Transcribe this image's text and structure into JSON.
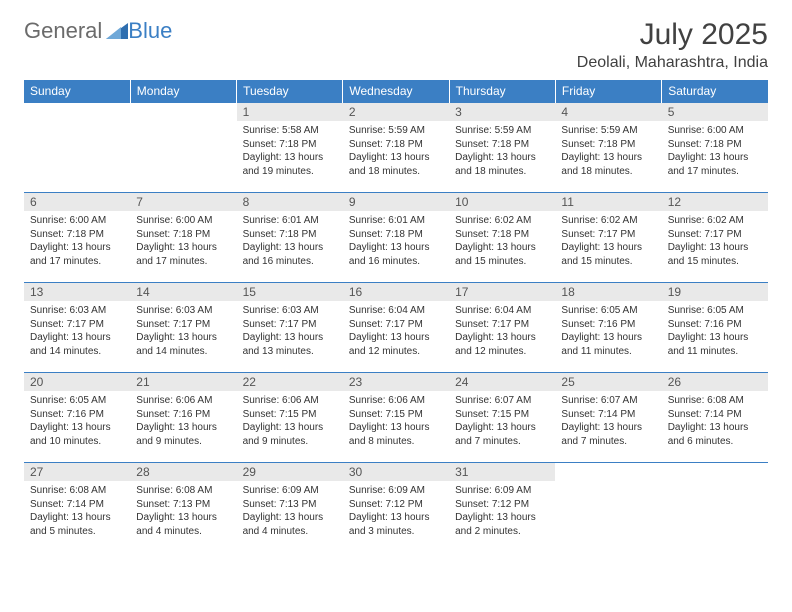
{
  "brand": {
    "part1": "General",
    "part2": "Blue"
  },
  "title": "July 2025",
  "location": "Deolali, Maharashtra, India",
  "colors": {
    "header_bg": "#3b7fc4",
    "header_text": "#ffffff",
    "daynum_bg": "#e9e9e9",
    "daynum_text": "#555555",
    "body_text": "#333333",
    "rule": "#3b7fc4"
  },
  "day_names": [
    "Sunday",
    "Monday",
    "Tuesday",
    "Wednesday",
    "Thursday",
    "Friday",
    "Saturday"
  ],
  "weeks": [
    [
      null,
      null,
      {
        "n": "1",
        "sr": "Sunrise: 5:58 AM",
        "ss": "Sunset: 7:18 PM",
        "dl": "Daylight: 13 hours and 19 minutes."
      },
      {
        "n": "2",
        "sr": "Sunrise: 5:59 AM",
        "ss": "Sunset: 7:18 PM",
        "dl": "Daylight: 13 hours and 18 minutes."
      },
      {
        "n": "3",
        "sr": "Sunrise: 5:59 AM",
        "ss": "Sunset: 7:18 PM",
        "dl": "Daylight: 13 hours and 18 minutes."
      },
      {
        "n": "4",
        "sr": "Sunrise: 5:59 AM",
        "ss": "Sunset: 7:18 PM",
        "dl": "Daylight: 13 hours and 18 minutes."
      },
      {
        "n": "5",
        "sr": "Sunrise: 6:00 AM",
        "ss": "Sunset: 7:18 PM",
        "dl": "Daylight: 13 hours and 17 minutes."
      }
    ],
    [
      {
        "n": "6",
        "sr": "Sunrise: 6:00 AM",
        "ss": "Sunset: 7:18 PM",
        "dl": "Daylight: 13 hours and 17 minutes."
      },
      {
        "n": "7",
        "sr": "Sunrise: 6:00 AM",
        "ss": "Sunset: 7:18 PM",
        "dl": "Daylight: 13 hours and 17 minutes."
      },
      {
        "n": "8",
        "sr": "Sunrise: 6:01 AM",
        "ss": "Sunset: 7:18 PM",
        "dl": "Daylight: 13 hours and 16 minutes."
      },
      {
        "n": "9",
        "sr": "Sunrise: 6:01 AM",
        "ss": "Sunset: 7:18 PM",
        "dl": "Daylight: 13 hours and 16 minutes."
      },
      {
        "n": "10",
        "sr": "Sunrise: 6:02 AM",
        "ss": "Sunset: 7:18 PM",
        "dl": "Daylight: 13 hours and 15 minutes."
      },
      {
        "n": "11",
        "sr": "Sunrise: 6:02 AM",
        "ss": "Sunset: 7:17 PM",
        "dl": "Daylight: 13 hours and 15 minutes."
      },
      {
        "n": "12",
        "sr": "Sunrise: 6:02 AM",
        "ss": "Sunset: 7:17 PM",
        "dl": "Daylight: 13 hours and 15 minutes."
      }
    ],
    [
      {
        "n": "13",
        "sr": "Sunrise: 6:03 AM",
        "ss": "Sunset: 7:17 PM",
        "dl": "Daylight: 13 hours and 14 minutes."
      },
      {
        "n": "14",
        "sr": "Sunrise: 6:03 AM",
        "ss": "Sunset: 7:17 PM",
        "dl": "Daylight: 13 hours and 14 minutes."
      },
      {
        "n": "15",
        "sr": "Sunrise: 6:03 AM",
        "ss": "Sunset: 7:17 PM",
        "dl": "Daylight: 13 hours and 13 minutes."
      },
      {
        "n": "16",
        "sr": "Sunrise: 6:04 AM",
        "ss": "Sunset: 7:17 PM",
        "dl": "Daylight: 13 hours and 12 minutes."
      },
      {
        "n": "17",
        "sr": "Sunrise: 6:04 AM",
        "ss": "Sunset: 7:17 PM",
        "dl": "Daylight: 13 hours and 12 minutes."
      },
      {
        "n": "18",
        "sr": "Sunrise: 6:05 AM",
        "ss": "Sunset: 7:16 PM",
        "dl": "Daylight: 13 hours and 11 minutes."
      },
      {
        "n": "19",
        "sr": "Sunrise: 6:05 AM",
        "ss": "Sunset: 7:16 PM",
        "dl": "Daylight: 13 hours and 11 minutes."
      }
    ],
    [
      {
        "n": "20",
        "sr": "Sunrise: 6:05 AM",
        "ss": "Sunset: 7:16 PM",
        "dl": "Daylight: 13 hours and 10 minutes."
      },
      {
        "n": "21",
        "sr": "Sunrise: 6:06 AM",
        "ss": "Sunset: 7:16 PM",
        "dl": "Daylight: 13 hours and 9 minutes."
      },
      {
        "n": "22",
        "sr": "Sunrise: 6:06 AM",
        "ss": "Sunset: 7:15 PM",
        "dl": "Daylight: 13 hours and 9 minutes."
      },
      {
        "n": "23",
        "sr": "Sunrise: 6:06 AM",
        "ss": "Sunset: 7:15 PM",
        "dl": "Daylight: 13 hours and 8 minutes."
      },
      {
        "n": "24",
        "sr": "Sunrise: 6:07 AM",
        "ss": "Sunset: 7:15 PM",
        "dl": "Daylight: 13 hours and 7 minutes."
      },
      {
        "n": "25",
        "sr": "Sunrise: 6:07 AM",
        "ss": "Sunset: 7:14 PM",
        "dl": "Daylight: 13 hours and 7 minutes."
      },
      {
        "n": "26",
        "sr": "Sunrise: 6:08 AM",
        "ss": "Sunset: 7:14 PM",
        "dl": "Daylight: 13 hours and 6 minutes."
      }
    ],
    [
      {
        "n": "27",
        "sr": "Sunrise: 6:08 AM",
        "ss": "Sunset: 7:14 PM",
        "dl": "Daylight: 13 hours and 5 minutes."
      },
      {
        "n": "28",
        "sr": "Sunrise: 6:08 AM",
        "ss": "Sunset: 7:13 PM",
        "dl": "Daylight: 13 hours and 4 minutes."
      },
      {
        "n": "29",
        "sr": "Sunrise: 6:09 AM",
        "ss": "Sunset: 7:13 PM",
        "dl": "Daylight: 13 hours and 4 minutes."
      },
      {
        "n": "30",
        "sr": "Sunrise: 6:09 AM",
        "ss": "Sunset: 7:12 PM",
        "dl": "Daylight: 13 hours and 3 minutes."
      },
      {
        "n": "31",
        "sr": "Sunrise: 6:09 AM",
        "ss": "Sunset: 7:12 PM",
        "dl": "Daylight: 13 hours and 2 minutes."
      },
      null,
      null
    ]
  ]
}
